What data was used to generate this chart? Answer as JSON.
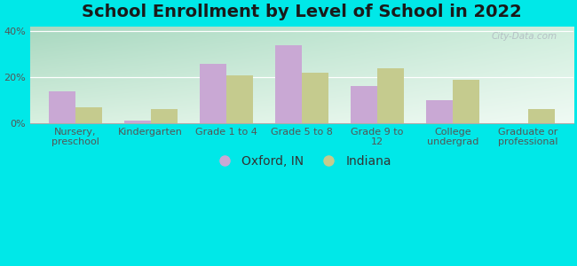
{
  "title": "School Enrollment by Level of School in 2022",
  "categories": [
    "Nursery,\npreschool",
    "Kindergarten",
    "Grade 1 to 4",
    "Grade 5 to 8",
    "Grade 9 to\n12",
    "College\nundergrad",
    "Graduate or\nprofessional"
  ],
  "oxford_values": [
    14,
    1,
    26,
    34,
    16,
    10,
    0
  ],
  "indiana_values": [
    7,
    6,
    21,
    22,
    24,
    19,
    6
  ],
  "oxford_color": "#c9a8d4",
  "indiana_color": "#c5cb8e",
  "bar_width": 0.35,
  "ylim": [
    0,
    42
  ],
  "yticks": [
    0,
    20,
    40
  ],
  "ytick_labels": [
    "0%",
    "20%",
    "40%"
  ],
  "background_color": "#00e8e8",
  "legend_labels": [
    "Oxford, IN",
    "Indiana"
  ],
  "watermark": "City-Data.com",
  "title_fontsize": 14,
  "tick_fontsize": 8,
  "legend_fontsize": 10,
  "grad_topleft": "#a8d8c0",
  "grad_topright": "#d0eedd",
  "grad_bottomleft": "#d8f0e0",
  "grad_bottomright": "#f0faf4"
}
